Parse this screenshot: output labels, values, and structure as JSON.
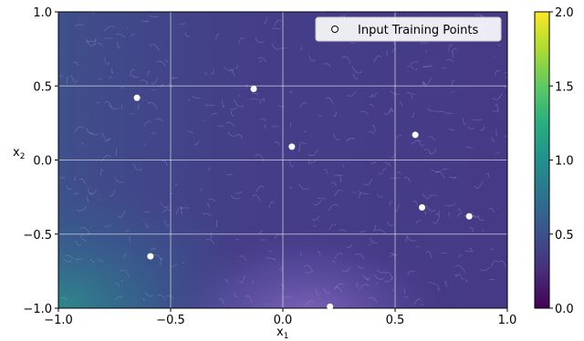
{
  "chart_data": {
    "type": "heatmap",
    "title": "",
    "xlabel": "x",
    "xlabel_sub": "1",
    "ylabel": "x",
    "ylabel_sub": "2",
    "xlim": [
      -1.0,
      1.0
    ],
    "ylim": [
      -1.0,
      1.0
    ],
    "xticks": [
      -1.0,
      -0.5,
      0.0,
      0.5,
      1.0
    ],
    "yticks": [
      -1.0,
      -0.5,
      0.0,
      0.5,
      1.0
    ],
    "xtick_labels": [
      "−1.0",
      "−0.5",
      "0.0",
      "0.5",
      "1.0"
    ],
    "ytick_labels": [
      "−1.0",
      "−0.5",
      "0.0",
      "0.5",
      "1.0"
    ],
    "grid": true,
    "colormap": "viridis",
    "colorbar": {
      "range": [
        0.0,
        2.0
      ],
      "ticks": [
        0.0,
        0.5,
        1.0,
        1.5,
        2.0
      ],
      "tick_labels": [
        "0.0",
        "0.5",
        "1.0",
        "1.5",
        "2.0"
      ]
    },
    "legend": {
      "placement": "top-right",
      "label": "Input Training Points"
    },
    "field_description": "values mostly near 0.4-0.5 with higher values (~0.8) at the lower-left corner and a lighter band (~0.7) near the bottom center-right",
    "training_points": [
      {
        "x": -0.65,
        "y": 0.42
      },
      {
        "x": -0.13,
        "y": 0.48
      },
      {
        "x": 0.04,
        "y": 0.09
      },
      {
        "x": 0.59,
        "y": 0.17
      },
      {
        "x": 0.62,
        "y": -0.32
      },
      {
        "x": 0.83,
        "y": -0.38
      },
      {
        "x": -0.59,
        "y": -0.65
      },
      {
        "x": 0.21,
        "y": -0.99
      }
    ]
  }
}
